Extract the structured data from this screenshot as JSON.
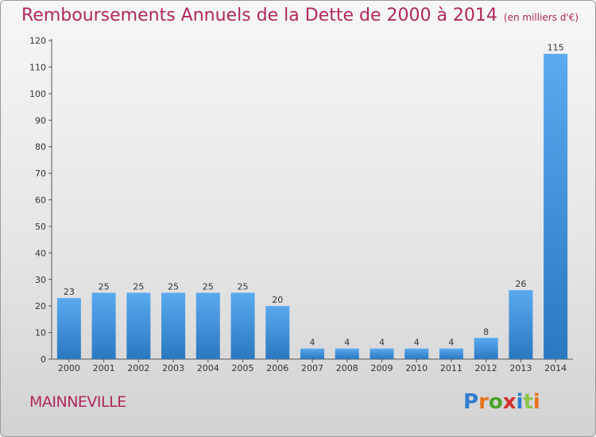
{
  "chart_data": {
    "type": "bar",
    "title": "Remboursements Annuels de la Dette de 2000 à 2014",
    "subtitle": "(en milliers d'€)",
    "categories": [
      "2000",
      "2001",
      "2002",
      "2003",
      "2004",
      "2005",
      "2006",
      "2007",
      "2008",
      "2009",
      "2010",
      "2011",
      "2012",
      "2013",
      "2014"
    ],
    "values": [
      23,
      25,
      25,
      25,
      25,
      25,
      20,
      4,
      4,
      4,
      4,
      4,
      8,
      26,
      115
    ],
    "ylim": [
      0,
      120
    ],
    "yticks": [
      0,
      10,
      20,
      30,
      40,
      50,
      60,
      70,
      80,
      90,
      100,
      110,
      120
    ],
    "grid": false,
    "bar_color": "#3a8fd6",
    "title_color": "#b0285e"
  },
  "commune": "MAINNEVILLE",
  "logo": {
    "text": "Proxiti",
    "colors": [
      "#2e7dd1",
      "#e8731c",
      "#4aa329",
      "#d32f2f",
      "#2e7dd1",
      "#8bc34a",
      "#e8731c"
    ]
  }
}
